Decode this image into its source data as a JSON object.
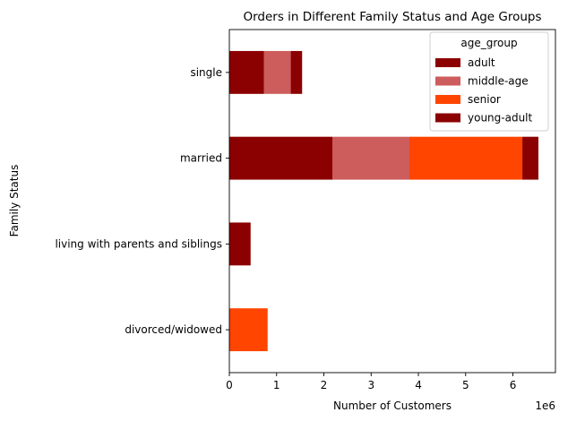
{
  "chart_data": {
    "type": "bar",
    "orientation": "horizontal",
    "stacked": true,
    "title": "Orders in Different Family Status and Age Groups",
    "xlabel": "Number of Customers",
    "ylabel": "Family Status",
    "x_offset_text": "1e6",
    "xlim": [
      0,
      6.9
    ],
    "x_ticks": [
      0,
      1,
      2,
      3,
      4,
      5,
      6
    ],
    "x_scale_multiplier": 1000000,
    "categories": [
      "divorced/widowed",
      "living with parents and siblings",
      "married",
      "single"
    ],
    "series": [
      {
        "name": "adult",
        "color": "#8b0000",
        "values": [
          0,
          0.45,
          2.18,
          0.73
        ]
      },
      {
        "name": "middle-age",
        "color": "#cd5c5c",
        "values": [
          0,
          0,
          1.63,
          0.57
        ]
      },
      {
        "name": "senior",
        "color": "#ff4500",
        "values": [
          0.81,
          0,
          2.39,
          0
        ]
      },
      {
        "name": "young-adult",
        "color": "#8b0000",
        "values": [
          0,
          0,
          0.34,
          0.24
        ]
      }
    ],
    "legend": {
      "title": "age_group",
      "placement": "top-right"
    },
    "grid": false
  }
}
